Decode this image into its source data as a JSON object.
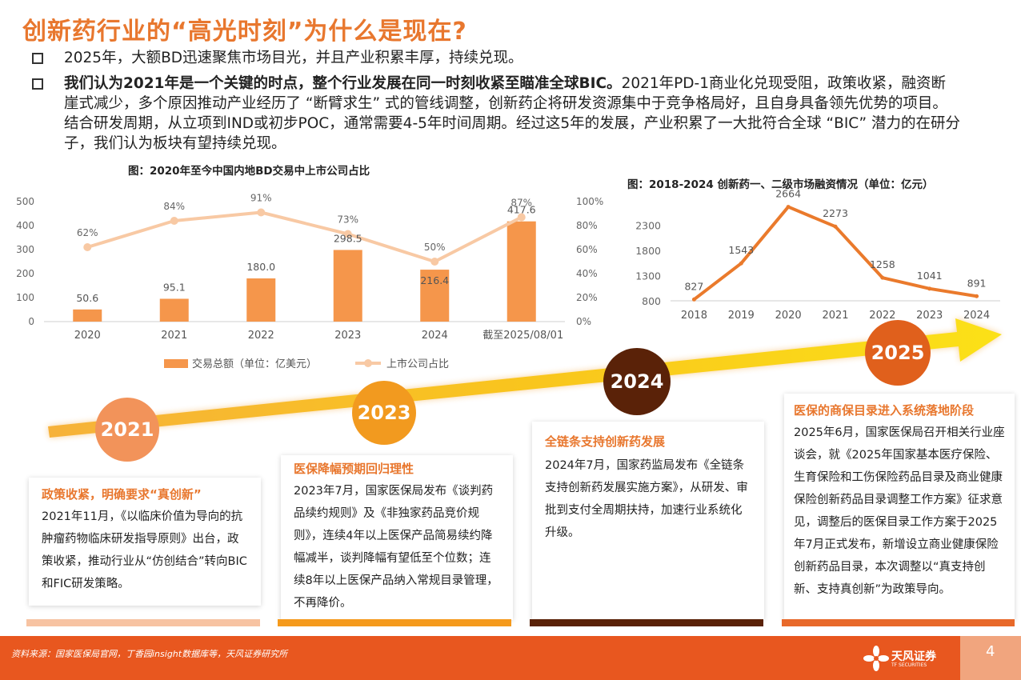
{
  "title": "创新药行业的“高光时刻”为什么是现在?",
  "bullets": {
    "b1": "2025年，大额BD迅速聚焦市场目光，并且产业积累丰厚，持续兑现。",
    "b2_bold": "我们认为2021年是一个关键的时点，整个行业发展在同一时刻收紧至瞄准全球BIC。",
    "b2_rest": "2021年PD-1商业化兑现受阻，政策收紧，融资断崖式减少，多个原因推动产业经历了 “断臂求生” 式的管线调整，创新药企将研发资源集中于竞争格局好，且自身具备领先优势的项目。结合研发周期，从立项到IND或初步POC，通常需要4-5年时间周期。经过这5年的发展，产业积累了一大批符合全球 “BIC” 潜力的在研分子，我们认为板块有望持续兑现。"
  },
  "chart_data": [
    {
      "type": "bar",
      "title": "图：2020年至今中国内地BD交易中上市公司占比",
      "categories": [
        "2020",
        "2021",
        "2022",
        "2023",
        "2024",
        "截至2025/08/01"
      ],
      "series": [
        {
          "name": "交易总额（单位：亿美元）",
          "type": "bar",
          "axis": "left",
          "values": [
            50.6,
            95.1,
            180.0,
            298.5,
            216.4,
            417.6
          ],
          "labels": [
            "50.6",
            "95.1",
            "180.0",
            "298.5",
            "216.4",
            "417.6"
          ],
          "color": "#f5964b"
        },
        {
          "name": "上市公司占比",
          "type": "line",
          "axis": "right",
          "values": [
            62,
            84,
            91,
            73,
            50,
            87
          ],
          "labels": [
            "62%",
            "84%",
            "91%",
            "73%",
            "50%",
            "87%"
          ],
          "color": "#f8c9a4"
        }
      ],
      "yleft": {
        "ticks": [
          "0",
          "100",
          "200",
          "300",
          "400",
          "500"
        ],
        "range": [
          0,
          500
        ]
      },
      "yright": {
        "ticks": [
          "0%",
          "20%",
          "40%",
          "60%",
          "80%",
          "100%"
        ],
        "range": [
          0,
          100
        ]
      },
      "legend_position": "bottom"
    },
    {
      "type": "line",
      "title": "图：2018-2024 创新药一、二级市场融资情况（单位：亿元）",
      "categories": [
        "2018",
        "2019",
        "2020",
        "2021",
        "2022",
        "2023",
        "2024"
      ],
      "values": [
        827,
        1543,
        2664,
        2273,
        1258,
        1041,
        891
      ],
      "labels": [
        "827",
        "1543",
        "2664",
        "2273",
        "1258",
        "1041",
        "891"
      ],
      "yticks": [
        "800",
        "1300",
        "1800",
        "2300"
      ],
      "ylim": [
        800,
        2800
      ],
      "color": "#ea7a2c"
    }
  ],
  "timeline": [
    {
      "year": "2021",
      "color": "#f2935a",
      "head": "政策收紧，明确要求“真创新”",
      "body": "2021年11月，《以临床价值为导向的抗肿瘤药物临床研发指导原则》出台，政策收紧，推动行业从“仿创结合”转向BIC和FIC研发策略。",
      "bar_color": "#f7c3a2"
    },
    {
      "year": "2023",
      "color": "#f29a1f",
      "head": "医保降幅预期回归理性",
      "body": "2023年7月，国家医保局发布《谈判药品续约规则》及《非独家药品竞价规则》，连续4年以上医保产品简易续约降幅减半，谈判降幅有望低至个位数；连续8年以上医保产品纳入常规目录管理，不再降价。",
      "bar_color": "#f59a1c"
    },
    {
      "year": "2024",
      "color": "#5a2208",
      "head": "全链条支持创新药发展",
      "body": "2024年7月，国家药监局发布《全链条支持创新药发展实施方案》，从研发、审批到支付全周期扶持，加速行业系统化升级。",
      "bar_color": "#5a2208"
    },
    {
      "year": "2025",
      "color": "#e0601c",
      "head": "医保的商保目录进入系统落地阶段",
      "body": "2025年6月，国家医保局召开相关行业座谈会，就《2025年国家基本医疗保险、生育保险和工伤保险药品目录及商业健康保险创新药品目录调整工作方案》征求意见，调整后的医保目录工作方案于2025年7月正式发布，新增设立商业健康保险创新药品目录，本次调整以“真支持创新、支持真创新”为政策导向。",
      "bar_color": "#e8692a"
    }
  ],
  "footer": {
    "source": "资料来源：国家医保局官网，丁香园insight数据库等，天风证券研究所",
    "page": "4",
    "logo_name": "天风证券",
    "logo_sub": "TF SECURITIES"
  }
}
